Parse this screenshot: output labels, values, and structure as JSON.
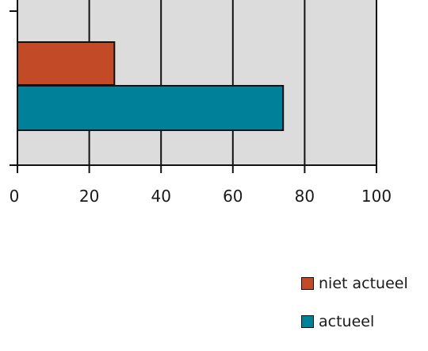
{
  "chart_data": {
    "type": "bar",
    "orientation": "horizontal",
    "series": [
      {
        "name": "niet actueel",
        "value": 27,
        "color": "#c34a26"
      },
      {
        "name": "actueel",
        "value": 74,
        "color": "#00819a"
      }
    ],
    "xlim": [
      0,
      100
    ],
    "xticks": [
      "0",
      "20",
      "40",
      "60",
      "80",
      "100"
    ],
    "grid": true,
    "legend": "bottom-right",
    "plot_background": "#dcdcdc"
  }
}
